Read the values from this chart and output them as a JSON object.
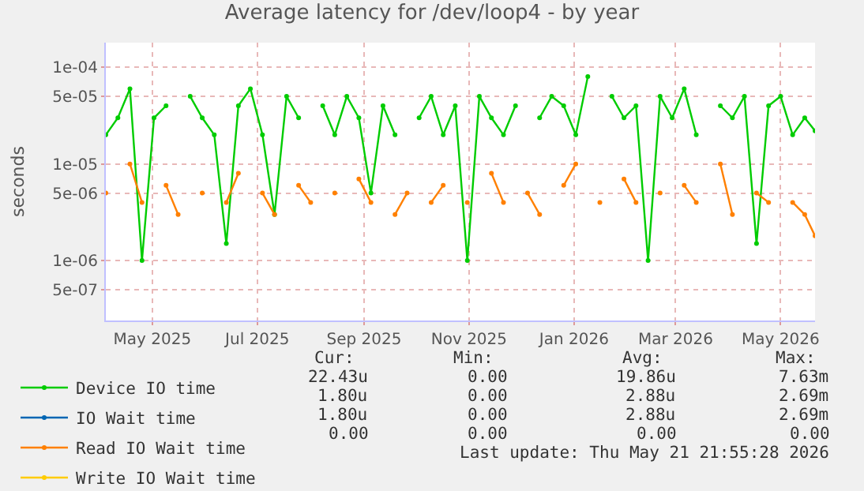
{
  "chart_data": {
    "type": "line",
    "title": "Average latency for /dev/loop4 - by year",
    "ylabel": "seconds",
    "log": "y",
    "grid": true,
    "legend": "bottom left",
    "marker": "circle",
    "line_style": "solid",
    "xlim": [
      "2025-04-04",
      "2026-05-21"
    ],
    "xticks": [
      {
        "value": "2025-05-01",
        "label": "May 2025"
      },
      {
        "value": "2025-07-01",
        "label": "Jul 2025"
      },
      {
        "value": "2025-09-01",
        "label": "Sep 2025"
      },
      {
        "value": "2025-11-01",
        "label": "Nov 2025"
      },
      {
        "value": "2026-01-01",
        "label": "Jan 2026"
      },
      {
        "value": "2026-03-01",
        "label": "Mar 2026"
      },
      {
        "value": "2026-05-01",
        "label": "May 2026"
      }
    ],
    "ylim": [
      2.4e-07,
      0.00018
    ],
    "yticks": [
      {
        "value": 5e-07,
        "label": "5e-07"
      },
      {
        "value": 1e-06,
        "label": "1e-06"
      },
      {
        "value": 5e-06,
        "label": "5e-06"
      },
      {
        "value": 1e-05,
        "label": "1e-05"
      },
      {
        "value": 5e-05,
        "label": "5e-05"
      },
      {
        "value": 0.0001,
        "label": "1e-04"
      }
    ],
    "x": [
      "2025-04-04",
      "2025-04-11",
      "2025-04-18",
      "2025-04-25",
      "2025-05-02",
      "2025-05-09",
      "2025-05-16",
      "2025-05-23",
      "2025-05-30",
      "2025-06-06",
      "2025-06-13",
      "2025-06-20",
      "2025-06-27",
      "2025-07-04",
      "2025-07-11",
      "2025-07-18",
      "2025-07-25",
      "2025-08-01",
      "2025-08-08",
      "2025-08-15",
      "2025-08-22",
      "2025-08-29",
      "2025-09-05",
      "2025-09-12",
      "2025-09-19",
      "2025-09-26",
      "2025-10-03",
      "2025-10-10",
      "2025-10-17",
      "2025-10-24",
      "2025-10-31",
      "2025-11-07",
      "2025-11-14",
      "2025-11-21",
      "2025-11-28",
      "2025-12-05",
      "2025-12-12",
      "2025-12-19",
      "2025-12-26",
      "2026-01-02",
      "2026-01-09",
      "2026-01-16",
      "2026-01-23",
      "2026-01-30",
      "2026-02-06",
      "2026-02-13",
      "2026-02-20",
      "2026-02-27",
      "2026-03-06",
      "2026-03-13",
      "2026-03-20",
      "2026-03-27",
      "2026-04-03",
      "2026-04-10",
      "2026-04-17",
      "2026-04-24",
      "2026-05-01",
      "2026-05-08",
      "2026-05-15",
      "2026-05-21"
    ],
    "series": [
      {
        "name": "Device IO time",
        "color": "#00cc00",
        "values": [
          2e-05,
          3e-05,
          6e-05,
          1e-06,
          3e-05,
          4e-05,
          null,
          5e-05,
          3e-05,
          2e-05,
          1.5e-06,
          4e-05,
          6e-05,
          2e-05,
          3e-06,
          5e-05,
          3e-05,
          null,
          4e-05,
          2e-05,
          5e-05,
          3e-05,
          5e-06,
          4e-05,
          2e-05,
          null,
          3e-05,
          5e-05,
          2e-05,
          4e-05,
          1e-06,
          5e-05,
          3e-05,
          2e-05,
          4e-05,
          null,
          3e-05,
          5e-05,
          4e-05,
          2e-05,
          8e-05,
          null,
          5e-05,
          3e-05,
          4e-05,
          1e-06,
          5e-05,
          3e-05,
          6e-05,
          2e-05,
          null,
          4e-05,
          3e-05,
          5e-05,
          1.5e-06,
          4e-05,
          5e-05,
          2e-05,
          3e-05,
          2.2e-05
        ]
      },
      {
        "name": "IO Wait time",
        "color": "#0066b3",
        "values": [
          null,
          null,
          null,
          null,
          null,
          null,
          null,
          null,
          null,
          null,
          null,
          null,
          null,
          null,
          null,
          null,
          null,
          null,
          null,
          null,
          null,
          null,
          null,
          null,
          null,
          null,
          null,
          null,
          null,
          null,
          null,
          null,
          null,
          null,
          null,
          null,
          null,
          null,
          null,
          null,
          null,
          null,
          null,
          null,
          null,
          null,
          null,
          null,
          null,
          null,
          null,
          null,
          null,
          null,
          null,
          null,
          null,
          null,
          null,
          null
        ]
      },
      {
        "name": "Read IO Wait time",
        "color": "#ff8000",
        "values": [
          5e-06,
          null,
          1e-05,
          4e-06,
          null,
          6e-06,
          3e-06,
          null,
          5e-06,
          null,
          4e-06,
          8e-06,
          null,
          5e-06,
          3e-06,
          null,
          6e-06,
          4e-06,
          null,
          5e-06,
          null,
          7e-06,
          4e-06,
          null,
          3e-06,
          5e-06,
          null,
          4e-06,
          6e-06,
          null,
          4e-06,
          null,
          8e-06,
          4e-06,
          null,
          5e-06,
          3e-06,
          null,
          6e-06,
          1e-05,
          null,
          4e-06,
          null,
          7e-06,
          4e-06,
          null,
          5e-06,
          null,
          6e-06,
          4e-06,
          null,
          1e-05,
          3e-06,
          null,
          5e-06,
          4e-06,
          null,
          4e-06,
          3e-06,
          1.8e-06
        ]
      },
      {
        "name": "Write IO Wait time",
        "color": "#ffcc00",
        "values": [
          null,
          null,
          null,
          null,
          null,
          null,
          null,
          null,
          null,
          null,
          null,
          null,
          null,
          null,
          null,
          null,
          null,
          null,
          null,
          null,
          null,
          null,
          null,
          null,
          null,
          null,
          null,
          null,
          null,
          null,
          null,
          null,
          null,
          null,
          null,
          null,
          null,
          null,
          null,
          null,
          null,
          null,
          null,
          null,
          null,
          null,
          null,
          null,
          null,
          null,
          null,
          null,
          null,
          null,
          null,
          null,
          null,
          null,
          null,
          null
        ]
      }
    ],
    "annotations": [
      "Cur:",
      "Min:",
      "Avg:",
      "Max:",
      "22.43u",
      "0.00",
      "19.86u",
      "7.63m",
      "1.80u",
      "0.00",
      "2.88u",
      "2.69m",
      "1.80u",
      "0.00",
      "2.88u",
      "2.69m",
      "0.00",
      "0.00",
      "0.00",
      "0.00",
      "Last update: Thu May 21 21:55:28 2026"
    ]
  }
}
